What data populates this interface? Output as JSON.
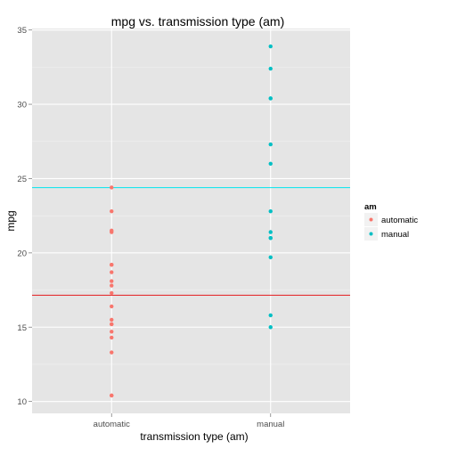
{
  "chart_data": {
    "type": "scatter",
    "title": "mpg vs. transmission type (am)",
    "xlabel": "transmission type (am)",
    "ylabel": "mpg",
    "categories": [
      "automatic",
      "manual"
    ],
    "ylim": [
      9.2,
      35.1
    ],
    "yticks": [
      10,
      15,
      20,
      25,
      30,
      35
    ],
    "grid": true,
    "legend": {
      "title": "am",
      "placement": "right",
      "entries": [
        "automatic",
        "manual"
      ]
    },
    "series": [
      {
        "name": "automatic",
        "color": "#F8766D",
        "x": "automatic",
        "values": [
          21.4,
          18.7,
          18.1,
          14.3,
          24.4,
          22.8,
          19.2,
          17.8,
          16.4,
          17.3,
          15.2,
          10.4,
          10.4,
          14.7,
          21.5,
          15.5,
          15.2,
          13.3,
          19.2
        ],
        "mean_line": 17.15
      },
      {
        "name": "manual",
        "color": "#00BFC4",
        "x": "manual",
        "values": [
          21.0,
          21.0,
          22.8,
          32.4,
          30.4,
          33.9,
          27.3,
          26.0,
          30.4,
          15.8,
          19.7,
          15.0,
          21.4
        ],
        "mean_line": 24.39
      }
    ],
    "hlines": [
      {
        "value": 24.39,
        "color": "#00E5EE"
      },
      {
        "value": 17.15,
        "color": "#E41A1C"
      }
    ]
  }
}
